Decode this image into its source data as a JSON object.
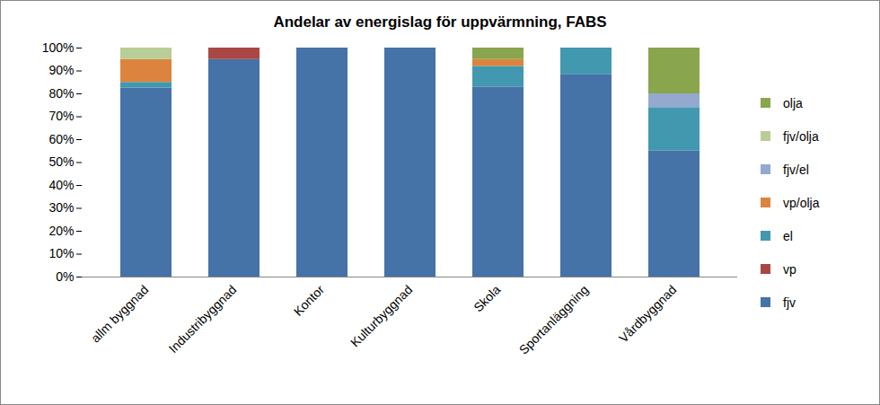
{
  "chart_data": {
    "type": "bar",
    "title": "Andelar av energislag för uppvärmning, FABS",
    "stacked": true,
    "grid": false,
    "legend": "right",
    "categories": [
      "allm byggnad",
      "Industribyggnad",
      "Kontor",
      "Kulturbyggnad",
      "Skola",
      "Sportanläggning",
      "Vårdbyggnad"
    ],
    "series": [
      {
        "name": "fjv",
        "color": "#4572A7",
        "values": [
          82.5,
          95,
          100,
          100,
          83,
          88.5,
          55
        ]
      },
      {
        "name": "vp",
        "color": "#AA4643",
        "values": [
          0,
          5,
          0,
          0,
          0,
          0,
          0
        ]
      },
      {
        "name": "el",
        "color": "#4198AF",
        "values": [
          2.5,
          0,
          0,
          0,
          9,
          11.5,
          19
        ]
      },
      {
        "name": "vp/olja",
        "color": "#DB843D",
        "values": [
          10,
          0,
          0,
          0,
          3,
          0,
          0
        ]
      },
      {
        "name": "fjv/el",
        "color": "#93A9CF",
        "values": [
          0,
          0,
          0,
          0,
          0,
          0,
          6
        ]
      },
      {
        "name": "fjv/olja",
        "color": "#B9CD96",
        "values": [
          5,
          0,
          0,
          0,
          0,
          0,
          0
        ]
      },
      {
        "name": "olja",
        "color": "#89A54E",
        "values": [
          0,
          0,
          0,
          0,
          5,
          0,
          20
        ]
      }
    ],
    "ylim": [
      0,
      100
    ],
    "yticks": [
      {
        "value": 0,
        "label": "0%"
      },
      {
        "value": 10,
        "label": "10%"
      },
      {
        "value": 20,
        "label": "20%"
      },
      {
        "value": 30,
        "label": "30%"
      },
      {
        "value": 40,
        "label": "40%"
      },
      {
        "value": 50,
        "label": "50%"
      },
      {
        "value": 60,
        "label": "60%"
      },
      {
        "value": 70,
        "label": "70%"
      },
      {
        "value": 80,
        "label": "80%"
      },
      {
        "value": 90,
        "label": "90%"
      },
      {
        "value": 100,
        "label": "100%"
      }
    ]
  }
}
